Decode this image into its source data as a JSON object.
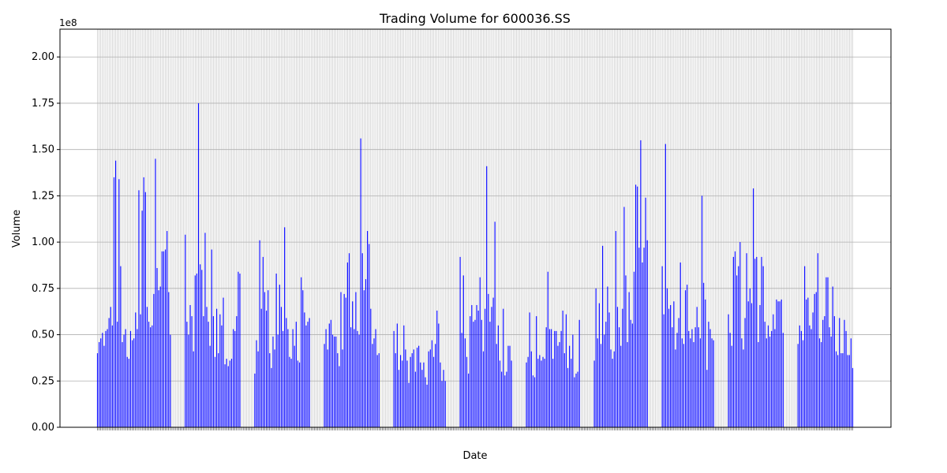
{
  "chart_data": {
    "type": "bar",
    "title": "Trading Volume for 600036.SS",
    "xlabel": "Date",
    "ylabel": "Volume",
    "y_scale_label": "1e8",
    "ylim": [
      0,
      2.15
    ],
    "y_ticks": [
      "0.00",
      "0.25",
      "0.50",
      "0.75",
      "1.00",
      "1.25",
      "1.50",
      "1.75",
      "2.00"
    ],
    "grid": true,
    "bar_color": "#0000ff",
    "grid_color": "#b0b0b0",
    "trading_days_per_block": 10,
    "gap_days_between_blocks": 6,
    "values": [
      0.4,
      0.46,
      0.48,
      0.51,
      0.44,
      0.52,
      0.53,
      0.59,
      0.65,
      0.55,
      1.35,
      1.44,
      0.57,
      1.34,
      0.87,
      0.46,
      0.5,
      0.53,
      0.38,
      0.37,
      0.52,
      0.47,
      0.48,
      0.62,
      0.53,
      1.28,
      0.61,
      1.17,
      1.35,
      1.27,
      0.65,
      0.57,
      0.54,
      0.55,
      0.72,
      1.45,
      0.86,
      0.74,
      0.76,
      0.95,
      0.95,
      0.96,
      1.06,
      0.73,
      0.5,
      1.04,
      0.57,
      0.5,
      0.66,
      0.6,
      0.41,
      0.82,
      0.83,
      1.75,
      0.88,
      0.85,
      0.6,
      1.05,
      0.65,
      0.57,
      0.44,
      0.96,
      0.6,
      0.38,
      0.64,
      0.4,
      0.61,
      0.55,
      0.7,
      0.34,
      0.37,
      0.33,
      0.36,
      0.37,
      0.53,
      0.52,
      0.6,
      0.84,
      0.83,
      0.29,
      0.47,
      0.41,
      1.01,
      0.64,
      0.92,
      0.73,
      0.63,
      0.74,
      0.4,
      0.32,
      0.49,
      0.42,
      0.83,
      0.5,
      0.77,
      0.65,
      0.52,
      1.08,
      0.59,
      0.53,
      0.38,
      0.37,
      0.53,
      0.44,
      0.57,
      0.36,
      0.35,
      0.81,
      0.74,
      0.62,
      0.55,
      0.57,
      0.59,
      0.45,
      0.53,
      0.42,
      0.56,
      0.58,
      0.5,
      0.49,
      0.49,
      0.4,
      0.33,
      0.73,
      0.42,
      0.72,
      0.7,
      0.89,
      0.94,
      0.54,
      0.68,
      0.53,
      0.73,
      0.52,
      0.5,
      1.56,
      0.94,
      0.74,
      0.8,
      1.06,
      0.99,
      0.64,
      0.45,
      0.48,
      0.53,
      0.39,
      0.4,
      0.52,
      0.4,
      0.56,
      0.31,
      0.39,
      0.36,
      0.55,
      0.42,
      0.36,
      0.24,
      0.38,
      0.4,
      0.42,
      0.3,
      0.43,
      0.44,
      0.35,
      0.31,
      0.35,
      0.27,
      0.23,
      0.41,
      0.42,
      0.47,
      0.38,
      0.45,
      0.63,
      0.56,
      0.35,
      0.25,
      0.31,
      0.25,
      0.92,
      0.51,
      0.82,
      0.48,
      0.38,
      0.29,
      0.6,
      0.66,
      0.57,
      0.58,
      0.66,
      0.63,
      0.81,
      0.58,
      0.41,
      0.64,
      1.41,
      0.72,
      0.57,
      0.65,
      0.7,
      1.11,
      0.45,
      0.55,
      0.36,
      0.3,
      0.64,
      0.28,
      0.3,
      0.44,
      0.44,
      0.36,
      0.35,
      0.38,
      0.62,
      0.41,
      0.28,
      0.27,
      0.6,
      0.37,
      0.39,
      0.36,
      0.38,
      0.37,
      0.54,
      0.84,
      0.53,
      0.53,
      0.37,
      0.52,
      0.52,
      0.44,
      0.46,
      0.52,
      0.63,
      0.4,
      0.61,
      0.32,
      0.44,
      0.37,
      0.5,
      0.27,
      0.29,
      0.3,
      0.58,
      0.36,
      0.75,
      0.48,
      0.67,
      0.45,
      0.98,
      0.5,
      0.57,
      0.76,
      0.62,
      0.42,
      0.37,
      0.41,
      1.06,
      0.65,
      0.54,
      0.44,
      0.64,
      1.19,
      0.82,
      0.46,
      0.73,
      0.58,
      0.56,
      0.84,
      1.31,
      1.3,
      0.97,
      1.55,
      0.89,
      0.97,
      1.24,
      1.01,
      0.87,
      0.61,
      1.53,
      0.75,
      0.64,
      0.66,
      0.54,
      0.68,
      0.42,
      0.51,
      0.59,
      0.89,
      0.48,
      0.45,
      0.74,
      0.77,
      0.52,
      0.48,
      0.53,
      0.46,
      0.54,
      0.65,
      0.54,
      0.48,
      1.25,
      0.78,
      0.69,
      0.31,
      0.57,
      0.53,
      0.48,
      0.47,
      0.61,
      0.51,
      0.44,
      0.92,
      0.95,
      0.82,
      0.87,
      1.0,
      0.48,
      0.42,
      0.59,
      0.94,
      0.68,
      0.75,
      0.67,
      1.29,
      0.91,
      0.92,
      0.46,
      0.66,
      0.92,
      0.87,
      0.57,
      0.48,
      0.55,
      0.49,
      0.52,
      0.61,
      0.53,
      0.69,
      0.68,
      0.68,
      0.69,
      0.51,
      0.45,
      0.55,
      0.52,
      0.47,
      0.87,
      0.69,
      0.7,
      0.55,
      0.53,
      0.62,
      0.72,
      0.73,
      0.94,
      0.48,
      0.46,
      0.58,
      0.6,
      0.81,
      0.81,
      0.54,
      0.49,
      0.76,
      0.6,
      0.41,
      0.39,
      0.59,
      0.4,
      0.4,
      0.58,
      0.52,
      0.39,
      0.39,
      0.48,
      0.32
    ]
  }
}
